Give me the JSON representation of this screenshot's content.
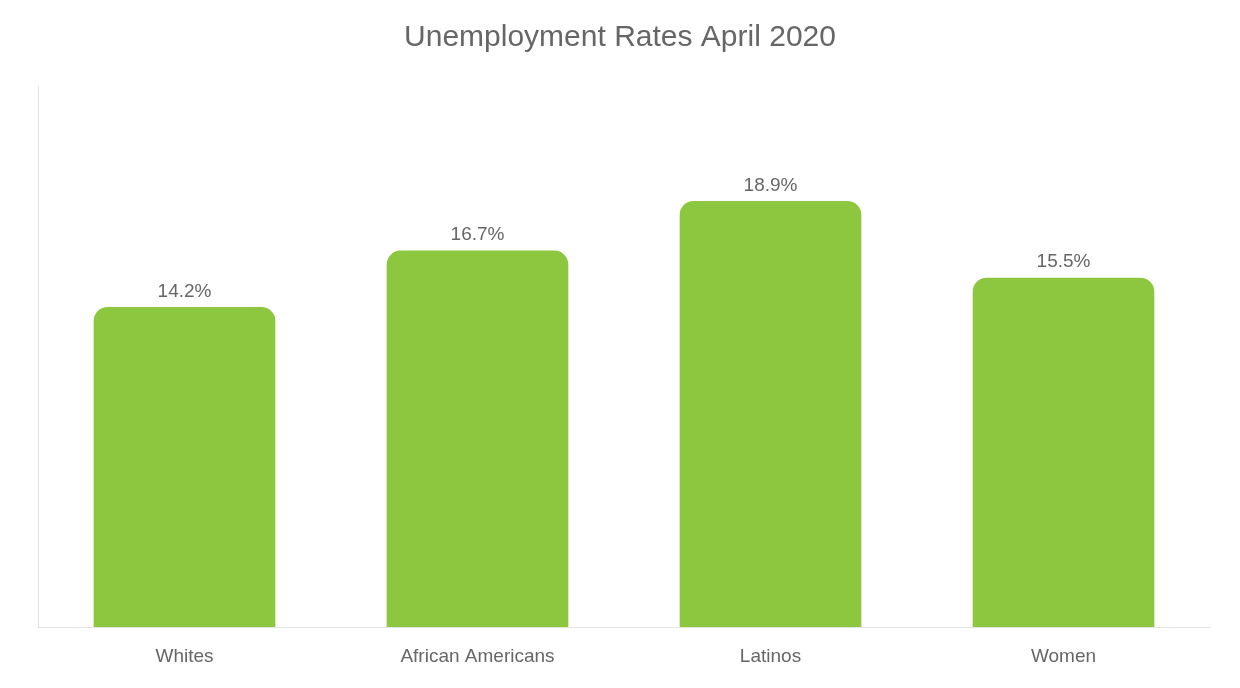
{
  "chart_data": {
    "type": "bar",
    "title": "Unemployment Rates April 2020",
    "categories": [
      "Whites",
      "African Americans",
      "Latinos",
      "Women"
    ],
    "values": [
      14.2,
      16.7,
      18.9,
      15.5
    ],
    "value_labels": [
      "14.2%",
      "16.7%",
      "18.9%",
      "15.5%"
    ],
    "data_labels": true,
    "color": "#8dc63f",
    "ylim": [
      0,
      24
    ],
    "grid": false,
    "tick_labels": "x"
  }
}
